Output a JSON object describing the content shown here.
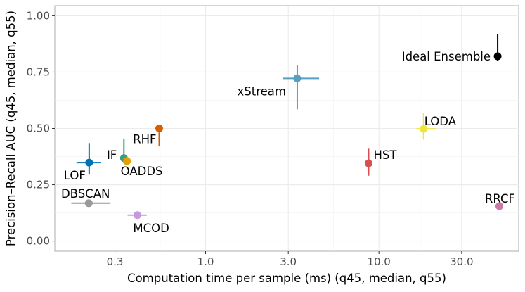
{
  "chart_data": {
    "type": "scatter",
    "title": "",
    "xlabel": "Computation time per sample (ms) (q45, median, q55)",
    "ylabel": "Precision–Recall AUC (q45, median, q55)",
    "x_scale": "log10",
    "xlim": [
      0.135,
      64
    ],
    "ylim": [
      -0.045,
      1.045
    ],
    "xticks": [
      0.3,
      1.0,
      3.0,
      10.0,
      30.0
    ],
    "xtick_labels": [
      "0.3",
      "1.0",
      "3.0",
      "10.0",
      "30.0"
    ],
    "yticks": [
      0.0,
      0.25,
      0.5,
      0.75,
      1.0
    ],
    "ytick_labels": [
      "0.00",
      "0.25",
      "0.50",
      "0.75",
      "1.00"
    ],
    "grid": true,
    "points": [
      {
        "name": "LOF",
        "label": "LOF",
        "color": "#0072b2",
        "x": 0.213,
        "x_q45": 0.18,
        "x_q55": 0.25,
        "y": 0.348,
        "y_q45": 0.295,
        "y_q55": 0.435,
        "label_pos": "bottom-left"
      },
      {
        "name": "IF",
        "label": "IF",
        "color": "#3a9e7e",
        "x": 0.338,
        "x_q45": 0.335,
        "x_q55": 0.342,
        "y": 0.368,
        "y_q45": 0.345,
        "y_q55": 0.455,
        "label_pos": "left"
      },
      {
        "name": "OADDS",
        "label": "OADDS",
        "color": "#e69f00",
        "x": 0.352,
        "x_q45": 0.348,
        "x_q55": 0.357,
        "y": 0.355,
        "y_q45": 0.345,
        "y_q55": 0.36,
        "label_pos": "bottom-right"
      },
      {
        "name": "RHF",
        "label": "RHF",
        "color": "#d55e00",
        "x": 0.54,
        "x_q45": 0.525,
        "x_q55": 0.555,
        "y": 0.5,
        "y_q45": 0.42,
        "y_q55": 0.51,
        "label_pos": "bottom-left"
      },
      {
        "name": "DBSCAN",
        "label": "DBSCAN",
        "color": "#999999",
        "x": 0.212,
        "x_q45": 0.168,
        "x_q55": 0.283,
        "y": 0.168,
        "y_q45": 0.155,
        "y_q55": 0.18,
        "label_pos": "top-left"
      },
      {
        "name": "MCOD",
        "label": "MCOD",
        "color": "#c39bdc",
        "x": 0.404,
        "x_q45": 0.355,
        "x_q55": 0.458,
        "y": 0.115,
        "y_q45": 0.105,
        "y_q55": 0.125,
        "label_pos": "bottom-right"
      },
      {
        "name": "xStream",
        "label": "xStream",
        "color": "#56a0c2",
        "x": 3.38,
        "x_q45": 2.78,
        "x_q55": 4.52,
        "y": 0.722,
        "y_q45": 0.585,
        "y_q55": 0.78,
        "label_pos": "bottom-left"
      },
      {
        "name": "HST",
        "label": "HST",
        "color": "#d94f4f",
        "x": 8.72,
        "x_q45": 8.62,
        "x_q55": 8.82,
        "y": 0.345,
        "y_q45": 0.29,
        "y_q55": 0.41,
        "label_pos": "top-right"
      },
      {
        "name": "LODA",
        "label": "LODA",
        "color": "#f0e442",
        "x": 18.1,
        "x_q45": 16.4,
        "x_q55": 21.4,
        "y": 0.498,
        "y_q45": 0.45,
        "y_q55": 0.57,
        "label_pos": "top-right"
      },
      {
        "name": "RRCF",
        "label": "RRCF",
        "color": "#cc79a7",
        "x": 49.5,
        "x_q45": 49.1,
        "x_q55": 50.0,
        "y": 0.155,
        "y_q45": 0.15,
        "y_q55": 0.16,
        "label_pos": "top-left"
      },
      {
        "name": "Ideal Ensemble",
        "label": "Ideal Ensemble",
        "color": "#000000",
        "x": 48.4,
        "x_q45": 48.0,
        "x_q55": 48.8,
        "y": 0.82,
        "y_q45": 0.8,
        "y_q55": 0.92,
        "label_pos": "left"
      }
    ]
  }
}
